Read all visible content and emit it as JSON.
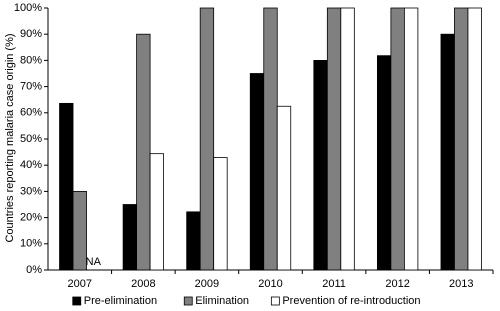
{
  "chart_data": {
    "type": "bar",
    "y_label": "Countries reporting malaria case origin (%)",
    "categories": [
      "2007",
      "2008",
      "2009",
      "2010",
      "2011",
      "2012",
      "2013"
    ],
    "series": [
      {
        "name": "Pre-elimination",
        "color": "#000000",
        "values": [
          63.6,
          25,
          22.2,
          75,
          80,
          81.8,
          90
        ]
      },
      {
        "name": "Elimination",
        "color": "#808080",
        "values": [
          30,
          90,
          100,
          100,
          100,
          100,
          100
        ]
      },
      {
        "name": "Prevention of re-introduction",
        "color": "#ffffff",
        "values": [
          null,
          44.4,
          42.9,
          62.5,
          100,
          100,
          100
        ]
      }
    ],
    "annotations": [
      {
        "text": "NA"
      }
    ],
    "ylim": [
      0,
      100
    ],
    "yticks": [
      {
        "value": 0,
        "label": "0%"
      },
      {
        "value": 10,
        "label": "10%"
      },
      {
        "value": 20,
        "label": "20%"
      },
      {
        "value": 30,
        "label": "30%"
      },
      {
        "value": 40,
        "label": "40%"
      },
      {
        "value": 50,
        "label": "50%"
      },
      {
        "value": 60,
        "label": "60%"
      },
      {
        "value": 70,
        "label": "70%"
      },
      {
        "value": 80,
        "label": "80%"
      },
      {
        "value": 90,
        "label": "90%"
      },
      {
        "value": 100,
        "label": "100%"
      }
    ],
    "grid": false,
    "legend": "bottom"
  }
}
